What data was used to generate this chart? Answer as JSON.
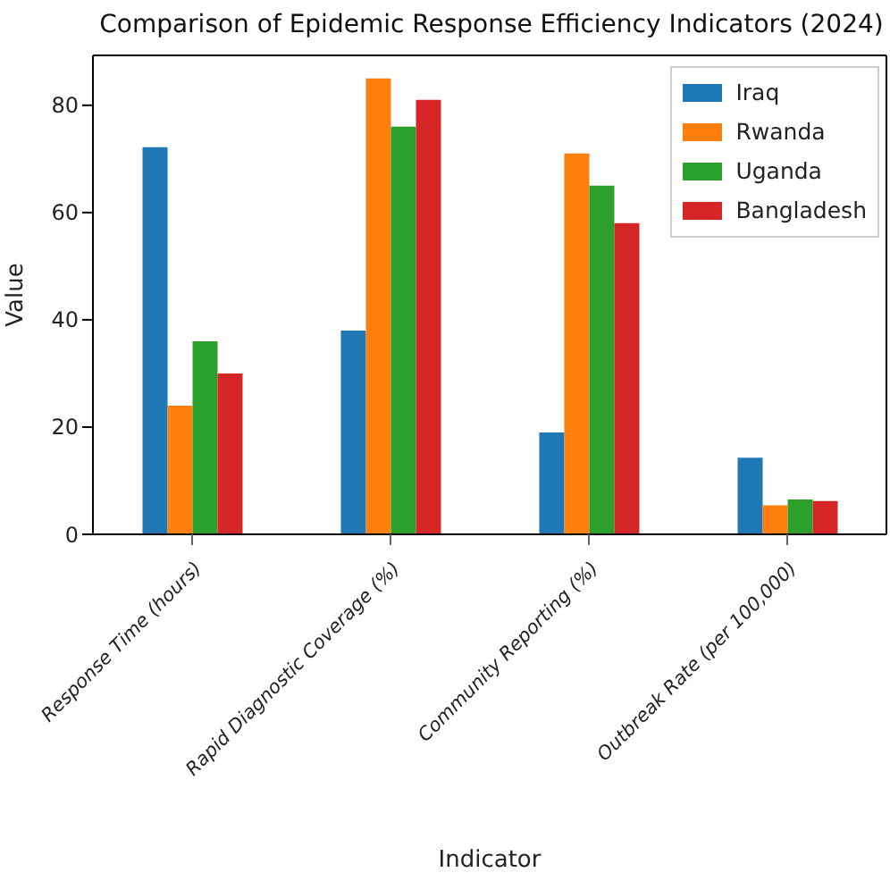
{
  "chart_data": {
    "type": "bar",
    "title": "Comparison of Epidemic Response Efficiency Indicators (2024)",
    "xlabel": "Indicator",
    "ylabel": "Value",
    "categories": [
      "Response Time (hours)",
      "Rapid Diagnostic Coverage (%)",
      "Community Reporting (%)",
      "Outbreak Rate (per 100,000)"
    ],
    "series": [
      {
        "name": "Iraq",
        "color": "#1f77b4",
        "values": [
          72.2,
          38,
          19,
          14.3
        ]
      },
      {
        "name": "Rwanda",
        "color": "#ff7f0e",
        "values": [
          24,
          85,
          71,
          5.4
        ]
      },
      {
        "name": "Uganda",
        "color": "#2ca02c",
        "values": [
          36,
          76,
          65,
          6.5
        ]
      },
      {
        "name": "Bangladesh",
        "color": "#d62728",
        "values": [
          30,
          81,
          58,
          6.2
        ]
      }
    ],
    "ylim": [
      0,
      89.3
    ],
    "yticks": [
      0,
      20,
      40,
      60,
      80
    ],
    "legend": "top right"
  }
}
